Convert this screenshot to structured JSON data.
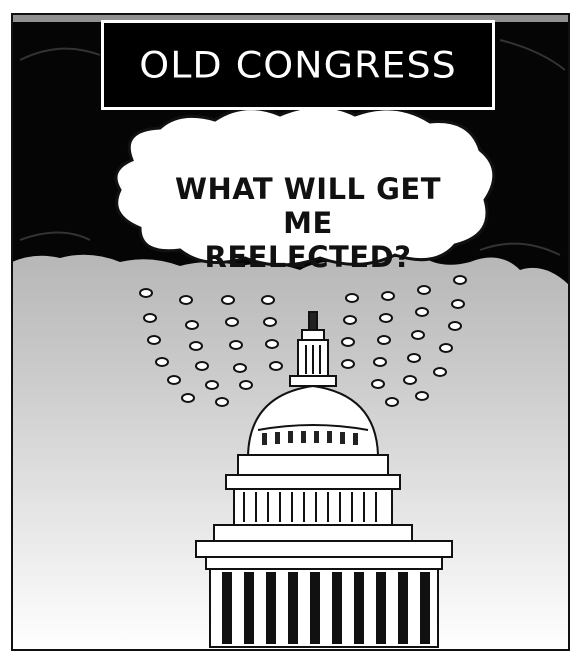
{
  "title_box": {
    "text": "OLD CONGRESS"
  },
  "thought_bubble": {
    "line1": "WHAT WILL GET ME",
    "line2": "REELECTED?"
  },
  "colors": {
    "cloud": "#000000",
    "sky_top": "#9a9a9a",
    "sky_bottom": "#ffffff",
    "ink": "#111111"
  },
  "icons": [
    "storm-cloud-icon",
    "thought-bubble-icon",
    "capitol-dome-icon",
    "raindrop-icon"
  ]
}
